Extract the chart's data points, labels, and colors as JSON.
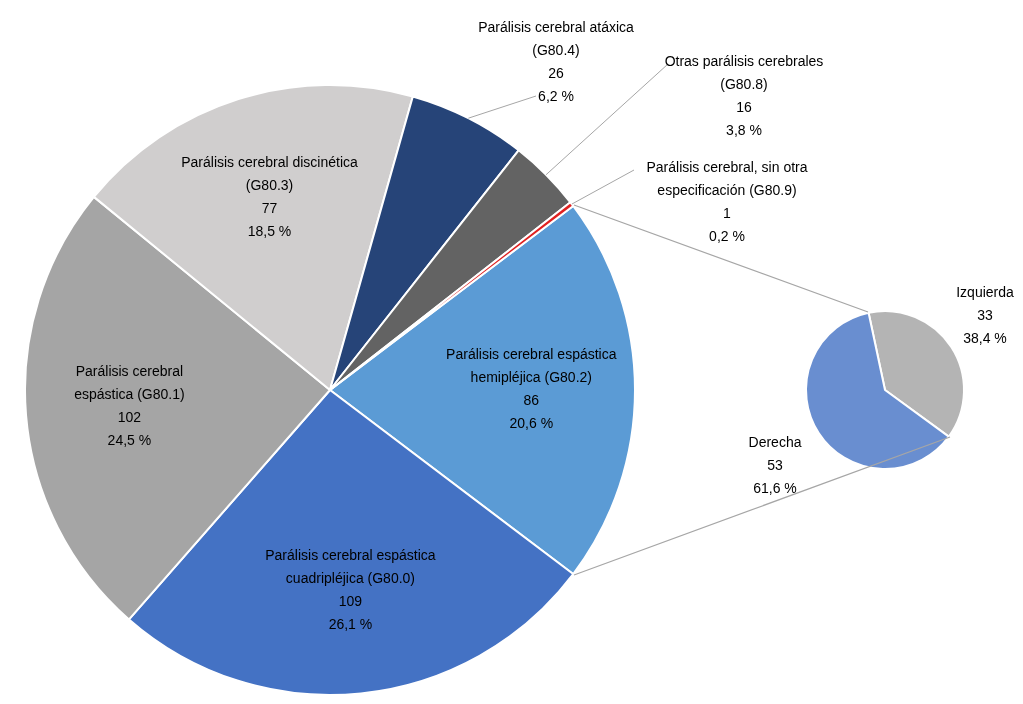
{
  "chart_data": [
    {
      "type": "pie",
      "categories": [
        "Parálisis cerebral espástica hemipléjica (G80.2)",
        "Parálisis cerebral espástica cuadripléjica (G80.0)",
        "Parálisis cerebral espástica (G80.1)",
        "Parálisis cerebral discinética (G80.3)",
        "Parálisis cerebral atáxica (G80.4)",
        "Otras parálisis cerebrales (G80.8)",
        "Parálisis cerebral, sin otra especificación (G80.9)"
      ],
      "values": [
        86,
        109,
        102,
        77,
        26,
        16,
        1
      ],
      "colors": [
        "#5b9bd5",
        "#4472c4",
        "#a5a5a5",
        "#d0cece",
        "#264478",
        "#636363",
        "#e02020"
      ],
      "value_labels": [
        "86\n20,6 %",
        "109\n26,1 %",
        "102\n24,5 %",
        "77\n18,5 %",
        "26\n6,2 %",
        "16\n3,8 %",
        "1\n0,2 %"
      ]
    },
    {
      "type": "pie",
      "categories": [
        "Izquierda",
        "Derecha"
      ],
      "values": [
        33,
        53
      ],
      "colors": [
        "#b4b4b4",
        "#698ed0"
      ],
      "value_labels": [
        "33\n38,4 %",
        "53\n61,6 %"
      ]
    }
  ]
}
